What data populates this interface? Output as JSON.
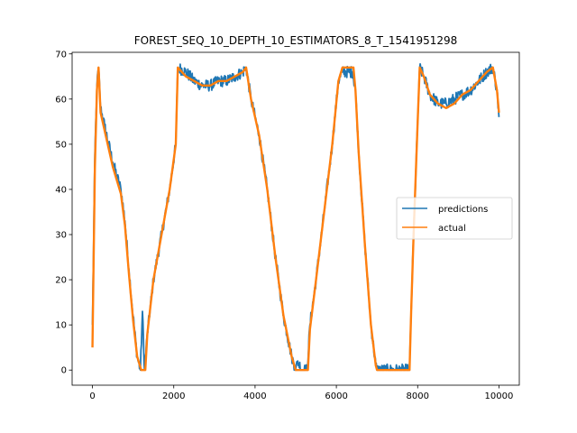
{
  "chart_data": {
    "type": "line",
    "title": "FOREST_SEQ_10_DEPTH_10_ESTIMATORS_8_T_1541951298",
    "xlabel": "",
    "ylabel": "",
    "xlim": [
      -500,
      10500
    ],
    "ylim": [
      -3.35,
      70.35
    ],
    "xticks": [
      0,
      2000,
      4000,
      6000,
      8000,
      10000
    ],
    "xtick_labels": [
      "0",
      "2000",
      "4000",
      "6000",
      "8000",
      "10000"
    ],
    "yticks": [
      0,
      10,
      20,
      30,
      40,
      50,
      60,
      70
    ],
    "ytick_labels": [
      "0",
      "10",
      "20",
      "30",
      "40",
      "50",
      "60",
      "70"
    ],
    "grid": false,
    "legend_placement": "center-right",
    "series": [
      {
        "name": "predictions",
        "color": "#1f77b4",
        "noisy": true,
        "x": [
          0,
          60,
          110,
          150,
          200,
          300,
          400,
          500,
          600,
          700,
          800,
          900,
          1000,
          1100,
          1180,
          1230,
          1280,
          1350,
          1500,
          1700,
          1900,
          2050,
          2100,
          2300,
          2500,
          2700,
          2900,
          3100,
          3300,
          3500,
          3700,
          3780,
          3900,
          4100,
          4300,
          4500,
          4700,
          4900,
          5000,
          5050,
          5150,
          5280,
          5350,
          5500,
          5700,
          5900,
          6050,
          6150,
          6400,
          6470,
          6550,
          6700,
          6850,
          6970,
          7000,
          7500,
          7800,
          7840,
          7900,
          8000,
          8050,
          8150,
          8300,
          8500,
          8700,
          8900,
          9100,
          9300,
          9500,
          9700,
          9850,
          9950,
          10000
        ],
        "y": [
          10,
          48,
          63,
          67,
          58,
          54,
          50,
          46,
          43,
          40,
          33,
          22,
          12,
          3,
          0,
          13,
          0,
          8,
          20,
          30,
          40,
          50,
          67,
          66,
          64,
          63,
          63,
          64,
          64,
          65,
          66,
          67,
          60,
          52,
          40,
          25,
          12,
          3,
          0,
          2,
          0,
          0,
          10,
          20,
          35,
          50,
          64,
          66,
          66,
          62,
          48,
          28,
          10,
          1,
          0,
          0,
          0,
          13,
          30,
          55,
          67,
          65,
          61,
          59,
          59,
          60,
          61,
          62,
          64,
          66,
          67,
          62,
          56
        ]
      },
      {
        "name": "actual",
        "color": "#ff7f0e",
        "noisy": false,
        "x": [
          0,
          60,
          110,
          150,
          200,
          300,
          400,
          500,
          600,
          700,
          800,
          900,
          1000,
          1100,
          1200,
          1300,
          1350,
          1500,
          1700,
          1900,
          2050,
          2100,
          2300,
          2500,
          2700,
          2900,
          3100,
          3300,
          3500,
          3700,
          3780,
          3900,
          4100,
          4300,
          4500,
          4700,
          4900,
          5000,
          5050,
          5300,
          5350,
          5500,
          5700,
          5900,
          6050,
          6150,
          6420,
          6470,
          6550,
          6700,
          6850,
          6970,
          7000,
          7500,
          7800,
          7840,
          7900,
          8000,
          8050,
          8150,
          8300,
          8500,
          8700,
          8900,
          9100,
          9300,
          9500,
          9700,
          9850,
          9950,
          10000
        ],
        "y": [
          5,
          45,
          62,
          67,
          57,
          53,
          49,
          45,
          42,
          39,
          32,
          21,
          11,
          3,
          0,
          0,
          8,
          20,
          30,
          40,
          50,
          67,
          65,
          64,
          63,
          63,
          64,
          64,
          65,
          66,
          67,
          60,
          52,
          40,
          25,
          12,
          3,
          0,
          0,
          0,
          9,
          20,
          35,
          50,
          64,
          67,
          67,
          62,
          48,
          28,
          10,
          1,
          0,
          0,
          0,
          13,
          30,
          55,
          67,
          65,
          61,
          59,
          58,
          59,
          61,
          62,
          64,
          66,
          67,
          62,
          57
        ]
      }
    ]
  }
}
